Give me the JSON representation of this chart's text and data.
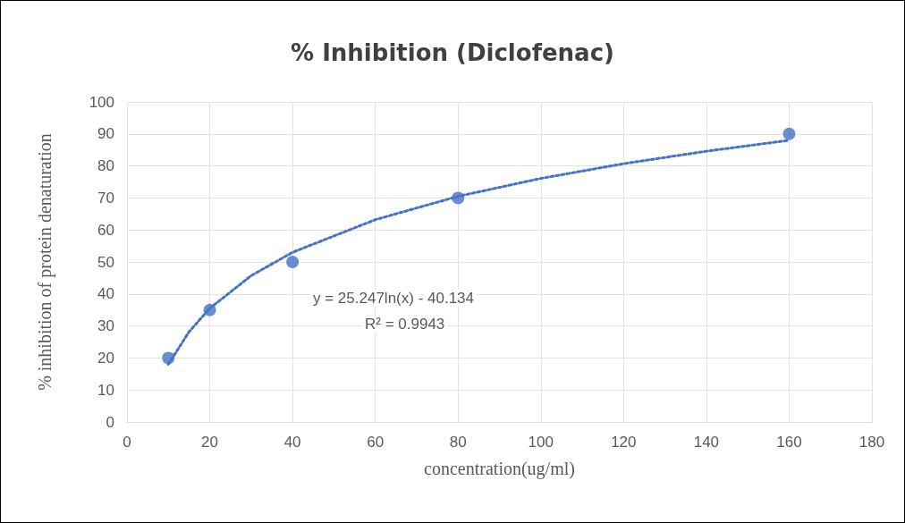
{
  "chart_data": {
    "type": "scatter",
    "title": "% Inhibition (Diclofenac)",
    "xlabel": "concentration(ug/ml)",
    "ylabel": "% inhibition of protein denaturation",
    "annotations": [
      "y = 25.247ln(x) - 40.134",
      "R² = 0.9943"
    ],
    "series": [
      {
        "color": "#4472c4",
        "marker": "circle",
        "x": [
          10,
          20,
          40,
          80,
          160
        ],
        "values": [
          20,
          35,
          50,
          70,
          90
        ]
      },
      {
        "type": "line",
        "color": "#4472c4",
        "marker": "none",
        "line_style": "dotted",
        "x": [
          10,
          15,
          20,
          30,
          40,
          60,
          80,
          100,
          120,
          140,
          160
        ],
        "values": [
          18.0,
          28.2,
          35.5,
          45.7,
          53.0,
          63.2,
          70.5,
          76.1,
          80.7,
          84.6,
          88.0
        ]
      }
    ],
    "xlim": [
      0,
      180
    ],
    "xticks": [
      0,
      20,
      40,
      60,
      80,
      100,
      120,
      140,
      160,
      180
    ],
    "ylim": [
      0,
      100
    ],
    "yticks": [
      0,
      10,
      20,
      30,
      40,
      50,
      60,
      70,
      80,
      90,
      100
    ],
    "grid": true
  }
}
